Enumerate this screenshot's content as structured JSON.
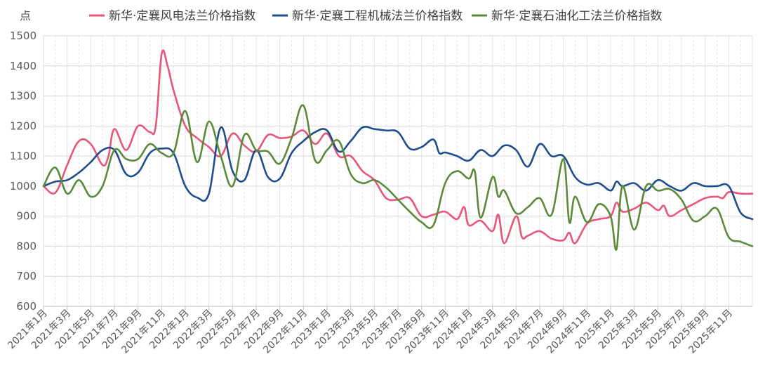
{
  "chart_data": {
    "type": "line",
    "ylabel": "点",
    "ylim": [
      600,
      1500
    ],
    "yticks": [
      600,
      700,
      800,
      900,
      1000,
      1100,
      1200,
      1300,
      1400,
      1500
    ],
    "x_tick_labels": [
      "2021年1月",
      "2021年3月",
      "2021年5月",
      "2021年7月",
      "2021年9月",
      "2021年11月",
      "2022年1月",
      "2022年3月",
      "2022年5月",
      "2022年7月",
      "2022年9月",
      "2022年11月",
      "2023年1月",
      "2023年3月",
      "2023年5月",
      "2023年7月",
      "2023年9月",
      "2023年11月",
      "2024年1月",
      "2024年3月",
      "2024年5月",
      "2024年7月",
      "2024年9月",
      "2024年11月",
      "2025年1月",
      "2025年3月",
      "2025年5月",
      "2025年7月",
      "2025年9月",
      "2025年11月"
    ],
    "x_domain": [
      0,
      60
    ],
    "grid": true,
    "legend_position": "top",
    "series": [
      {
        "name": "新华·定襄风电法兰价格指数",
        "color": "#e8567a",
        "points": [
          [
            0,
            1000
          ],
          [
            1,
            978
          ],
          [
            2,
            1070
          ],
          [
            3,
            1150
          ],
          [
            4,
            1140
          ],
          [
            5,
            1070
          ],
          [
            5.5,
            1100
          ],
          [
            6,
            1190
          ],
          [
            7,
            1120
          ],
          [
            8,
            1200
          ],
          [
            9,
            1180
          ],
          [
            9.5,
            1200
          ],
          [
            10,
            1440
          ],
          [
            10.5,
            1400
          ],
          [
            11,
            1320
          ],
          [
            12,
            1200
          ],
          [
            13,
            1160
          ],
          [
            14,
            1130
          ],
          [
            15,
            1100
          ],
          [
            16,
            1175
          ],
          [
            17,
            1135
          ],
          [
            18,
            1115
          ],
          [
            19,
            1170
          ],
          [
            20,
            1160
          ],
          [
            21,
            1165
          ],
          [
            22,
            1185
          ],
          [
            23,
            1140
          ],
          [
            24,
            1175
          ],
          [
            25,
            1100
          ],
          [
            26,
            1100
          ],
          [
            27,
            1050
          ],
          [
            28,
            1020
          ],
          [
            29,
            960
          ],
          [
            30,
            955
          ],
          [
            31,
            960
          ],
          [
            32,
            900
          ],
          [
            33,
            905
          ],
          [
            34,
            915
          ],
          [
            35,
            890
          ],
          [
            35.6,
            930
          ],
          [
            36,
            870
          ],
          [
            37,
            885
          ],
          [
            38,
            850
          ],
          [
            38.5,
            905
          ],
          [
            39,
            810
          ],
          [
            40,
            900
          ],
          [
            40.5,
            830
          ],
          [
            41,
            835
          ],
          [
            42,
            850
          ],
          [
            43,
            825
          ],
          [
            44,
            820
          ],
          [
            44.5,
            845
          ],
          [
            45,
            810
          ],
          [
            46,
            875
          ],
          [
            47,
            890
          ],
          [
            48,
            900
          ],
          [
            48.5,
            945
          ],
          [
            49,
            915
          ],
          [
            50,
            925
          ],
          [
            51,
            945
          ],
          [
            52,
            920
          ],
          [
            52.5,
            935
          ],
          [
            53,
            900
          ],
          [
            54,
            920
          ],
          [
            55,
            940
          ],
          [
            56,
            960
          ],
          [
            57,
            965
          ],
          [
            57.5,
            960
          ],
          [
            58,
            980
          ],
          [
            59,
            975
          ],
          [
            60,
            975
          ]
        ]
      },
      {
        "name": "新华·定襄工程机械法兰价格指数",
        "color": "#1f4e8c",
        "points": [
          [
            0,
            1000
          ],
          [
            1,
            1015
          ],
          [
            2,
            1020
          ],
          [
            3,
            1045
          ],
          [
            4,
            1080
          ],
          [
            5,
            1120
          ],
          [
            6,
            1120
          ],
          [
            7,
            1040
          ],
          [
            8,
            1045
          ],
          [
            9,
            1110
          ],
          [
            10,
            1125
          ],
          [
            11,
            1110
          ],
          [
            12,
            1000
          ],
          [
            13,
            962
          ],
          [
            14,
            975
          ],
          [
            15,
            1195
          ],
          [
            16,
            1050
          ],
          [
            17,
            1020
          ],
          [
            18,
            1120
          ],
          [
            19,
            1030
          ],
          [
            20,
            1025
          ],
          [
            21,
            1110
          ],
          [
            22,
            1150
          ],
          [
            23,
            1180
          ],
          [
            24,
            1185
          ],
          [
            25,
            1115
          ],
          [
            26,
            1150
          ],
          [
            27,
            1195
          ],
          [
            28,
            1190
          ],
          [
            29,
            1185
          ],
          [
            30,
            1180
          ],
          [
            31,
            1125
          ],
          [
            32,
            1130
          ],
          [
            33,
            1155
          ],
          [
            33.5,
            1110
          ],
          [
            34,
            1112
          ],
          [
            35,
            1100
          ],
          [
            36,
            1085
          ],
          [
            37,
            1120
          ],
          [
            38,
            1100
          ],
          [
            39,
            1135
          ],
          [
            40,
            1120
          ],
          [
            41,
            1065
          ],
          [
            42,
            1140
          ],
          [
            43,
            1100
          ],
          [
            44,
            1100
          ],
          [
            45,
            1030
          ],
          [
            46,
            1005
          ],
          [
            47,
            1010
          ],
          [
            48,
            985
          ],
          [
            48.5,
            1015
          ],
          [
            49,
            1000
          ],
          [
            50,
            1010
          ],
          [
            51,
            985
          ],
          [
            52,
            1020
          ],
          [
            53,
            1000
          ],
          [
            54,
            985
          ],
          [
            55,
            1010
          ],
          [
            56,
            1000
          ],
          [
            57,
            1000
          ],
          [
            58,
            1000
          ],
          [
            59,
            912
          ],
          [
            60,
            890
          ]
        ]
      },
      {
        "name": "新华·定襄石油化工法兰价格指数",
        "color": "#5b8a3a",
        "points": [
          [
            0,
            1000
          ],
          [
            1,
            1062
          ],
          [
            2,
            975
          ],
          [
            3,
            1020
          ],
          [
            4,
            965
          ],
          [
            5,
            1000
          ],
          [
            6,
            1120
          ],
          [
            7,
            1090
          ],
          [
            8,
            1090
          ],
          [
            9,
            1140
          ],
          [
            10,
            1110
          ],
          [
            11,
            1110
          ],
          [
            12,
            1250
          ],
          [
            13,
            1080
          ],
          [
            14,
            1215
          ],
          [
            15,
            1100
          ],
          [
            16,
            1000
          ],
          [
            17,
            1170
          ],
          [
            18,
            1120
          ],
          [
            19,
            1115
          ],
          [
            20,
            1075
          ],
          [
            21,
            1160
          ],
          [
            22,
            1268
          ],
          [
            23,
            1085
          ],
          [
            24,
            1120
          ],
          [
            25,
            1150
          ],
          [
            26,
            1040
          ],
          [
            27,
            1010
          ],
          [
            28,
            1020
          ],
          [
            29,
            995
          ],
          [
            30,
            955
          ],
          [
            31,
            915
          ],
          [
            32,
            880
          ],
          [
            33,
            870
          ],
          [
            34,
            1010
          ],
          [
            35,
            1050
          ],
          [
            36,
            1025
          ],
          [
            36.5,
            1050
          ],
          [
            37,
            895
          ],
          [
            38,
            1030
          ],
          [
            38.5,
            965
          ],
          [
            39,
            985
          ],
          [
            40,
            910
          ],
          [
            41,
            930
          ],
          [
            42,
            960
          ],
          [
            43,
            905
          ],
          [
            44,
            1090
          ],
          [
            44.5,
            880
          ],
          [
            45,
            965
          ],
          [
            46,
            880
          ],
          [
            47,
            940
          ],
          [
            48,
            900
          ],
          [
            48.5,
            790
          ],
          [
            49,
            1000
          ],
          [
            50,
            855
          ],
          [
            51,
            1000
          ],
          [
            52,
            985
          ],
          [
            53,
            990
          ],
          [
            54,
            955
          ],
          [
            55,
            885
          ],
          [
            56,
            900
          ],
          [
            57,
            925
          ],
          [
            58,
            830
          ],
          [
            59,
            815
          ],
          [
            60,
            800
          ]
        ]
      }
    ]
  }
}
